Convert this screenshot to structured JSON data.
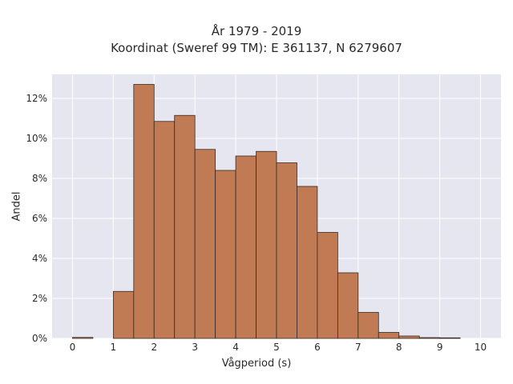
{
  "chart_data": {
    "type": "bar",
    "title_lines": [
      "År 1979 - 2019",
      "Koordinat (Sweref 99 TM): E 361137, N 6279607"
    ],
    "xlabel": "Vågperiod (s)",
    "ylabel": "Andel",
    "x_ticks": [
      0,
      1,
      2,
      3,
      4,
      5,
      6,
      7,
      8,
      9,
      10
    ],
    "y_ticks": [
      0,
      2,
      4,
      6,
      8,
      10,
      12
    ],
    "y_tick_suffix": "%",
    "xlim": [
      -0.5,
      10.5
    ],
    "ylim": [
      0,
      13.2
    ],
    "bin_width": 0.5,
    "bins": [
      {
        "x0": 0.0,
        "value": 0.05
      },
      {
        "x0": 1.0,
        "value": 2.35
      },
      {
        "x0": 1.5,
        "value": 12.7
      },
      {
        "x0": 2.0,
        "value": 10.85
      },
      {
        "x0": 2.5,
        "value": 11.15
      },
      {
        "x0": 3.0,
        "value": 9.45
      },
      {
        "x0": 3.5,
        "value": 8.4
      },
      {
        "x0": 4.0,
        "value": 9.12
      },
      {
        "x0": 4.5,
        "value": 9.35
      },
      {
        "x0": 5.0,
        "value": 8.78
      },
      {
        "x0": 5.5,
        "value": 7.6
      },
      {
        "x0": 6.0,
        "value": 5.3
      },
      {
        "x0": 6.5,
        "value": 3.28
      },
      {
        "x0": 7.0,
        "value": 1.3
      },
      {
        "x0": 7.5,
        "value": 0.3
      },
      {
        "x0": 8.0,
        "value": 0.12
      },
      {
        "x0": 8.5,
        "value": 0.04
      },
      {
        "x0": 9.0,
        "value": 0.03
      }
    ],
    "bar_color": "#c07a54",
    "bar_edge_color": "#3a2a22",
    "plot_background": "#e6e6f0",
    "grid": true,
    "grid_color": "#ffffff"
  }
}
